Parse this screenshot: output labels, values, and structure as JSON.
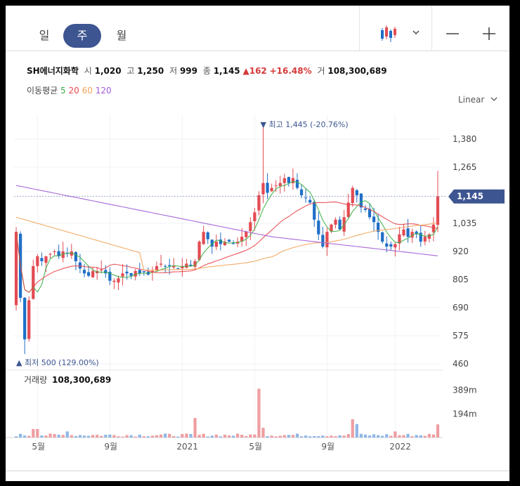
{
  "toolbar": {
    "periods": [
      "일",
      "주",
      "월"
    ],
    "selected_period": "주",
    "chart_type_icon": "candlestick-icon",
    "dropdown_icon": "chevron-down-icon",
    "zoom_out_icon": "minus-icon",
    "zoom_in_icon": "plus-icon"
  },
  "quote": {
    "name": "SH에너지화학",
    "open_label": "시",
    "open": "1,020",
    "high_label": "고",
    "high": "1,250",
    "low_label": "저",
    "low": "999",
    "close_label": "종",
    "close": "1,145",
    "change": "▲162",
    "change_pct": "+16.48%",
    "volume_label": "거",
    "volume": "108,300,689"
  },
  "moving_average": {
    "label": "이동평균",
    "periods": [
      "5",
      "20",
      "60",
      "120"
    ],
    "colors": [
      "#3cb043",
      "#e8454b",
      "#f2a35a",
      "#a05ad6"
    ]
  },
  "scale": "Linear",
  "colors": {
    "up": "#e34b53",
    "down": "#1f6fc7",
    "accent": "#3d5590",
    "price_tag": "#3d5590"
  },
  "chart_data": {
    "type": "candlestick",
    "y_ticks": [
      "1,380",
      "1,265",
      "1,035",
      "920",
      "805",
      "690",
      "575",
      "460"
    ],
    "y_tick_values": [
      1380,
      1265,
      1035,
      920,
      805,
      690,
      575,
      460
    ],
    "ylim": [
      430,
      1500
    ],
    "x_labels": [
      "5월",
      "9월",
      "2021",
      "5월",
      "9월",
      "2022"
    ],
    "x_label_positions": [
      5,
      22,
      39,
      56,
      73,
      89
    ],
    "num_weeks": 100,
    "current_price": "1,145",
    "current_price_value": 1145,
    "max_label": "최고 1,445 (-20.76%)",
    "max_week": 58,
    "max_value": 1445,
    "min_label": "최저 500 (129.00%)",
    "min_week": 2,
    "min_value": 500,
    "volume_label": "거래량",
    "volume_value": "108,300,689",
    "volume_ticks": [
      "389m",
      "194m"
    ],
    "volume_tick_values": [
      389,
      194
    ],
    "volume_max": 420,
    "close_key": [
      [
        0,
        1000
      ],
      [
        1,
        730
      ],
      [
        2,
        560
      ],
      [
        3,
        720
      ],
      [
        4,
        860
      ],
      [
        5,
        900
      ],
      [
        6,
        880
      ],
      [
        7,
        900
      ],
      [
        8,
        910
      ],
      [
        9,
        920
      ],
      [
        10,
        900
      ],
      [
        11,
        920
      ],
      [
        12,
        910
      ],
      [
        13,
        920
      ],
      [
        14,
        880
      ],
      [
        15,
        850
      ],
      [
        16,
        830
      ],
      [
        17,
        820
      ],
      [
        18,
        840
      ],
      [
        19,
        840
      ],
      [
        20,
        845
      ],
      [
        21,
        830
      ],
      [
        22,
        800
      ],
      [
        23,
        800
      ],
      [
        24,
        810
      ],
      [
        25,
        830
      ],
      [
        26,
        830
      ],
      [
        27,
        820
      ],
      [
        28,
        840
      ],
      [
        29,
        830
      ],
      [
        30,
        835
      ],
      [
        31,
        825
      ],
      [
        32,
        840
      ],
      [
        33,
        860
      ],
      [
        34,
        870
      ],
      [
        35,
        860
      ],
      [
        36,
        860
      ],
      [
        37,
        860
      ],
      [
        38,
        850
      ],
      [
        39,
        860
      ],
      [
        40,
        870
      ],
      [
        41,
        860
      ],
      [
        42,
        880
      ],
      [
        43,
        960
      ],
      [
        44,
        1000
      ],
      [
        45,
        970
      ],
      [
        46,
        940
      ],
      [
        47,
        960
      ],
      [
        48,
        950
      ],
      [
        49,
        960
      ],
      [
        50,
        960
      ],
      [
        51,
        950
      ],
      [
        52,
        960
      ],
      [
        53,
        980
      ],
      [
        54,
        1000
      ],
      [
        55,
        1040
      ],
      [
        56,
        1080
      ],
      [
        57,
        1150
      ],
      [
        58,
        1200
      ],
      [
        59,
        1160
      ],
      [
        60,
        1180
      ],
      [
        61,
        1190
      ],
      [
        62,
        1200
      ],
      [
        63,
        1220
      ],
      [
        64,
        1200
      ],
      [
        65,
        1220
      ],
      [
        66,
        1180
      ],
      [
        67,
        1150
      ],
      [
        68,
        1140
      ],
      [
        69,
        1120
      ],
      [
        70,
        1050
      ],
      [
        71,
        990
      ],
      [
        72,
        940
      ],
      [
        73,
        1000
      ],
      [
        74,
        1030
      ],
      [
        75,
        1050
      ],
      [
        76,
        1010
      ],
      [
        77,
        1060
      ],
      [
        78,
        1120
      ],
      [
        79,
        1180
      ],
      [
        80,
        1150
      ],
      [
        81,
        1100
      ],
      [
        82,
        1090
      ],
      [
        83,
        1060
      ],
      [
        84,
        1040
      ],
      [
        85,
        1000
      ],
      [
        86,
        960
      ],
      [
        87,
        940
      ],
      [
        88,
        940
      ],
      [
        89,
        950
      ],
      [
        90,
        990
      ],
      [
        91,
        1010
      ],
      [
        92,
        980
      ],
      [
        93,
        1000
      ],
      [
        94,
        990
      ],
      [
        95,
        960
      ],
      [
        96,
        980
      ],
      [
        97,
        990
      ],
      [
        98,
        1030
      ],
      [
        99,
        1145
      ]
    ]
  }
}
